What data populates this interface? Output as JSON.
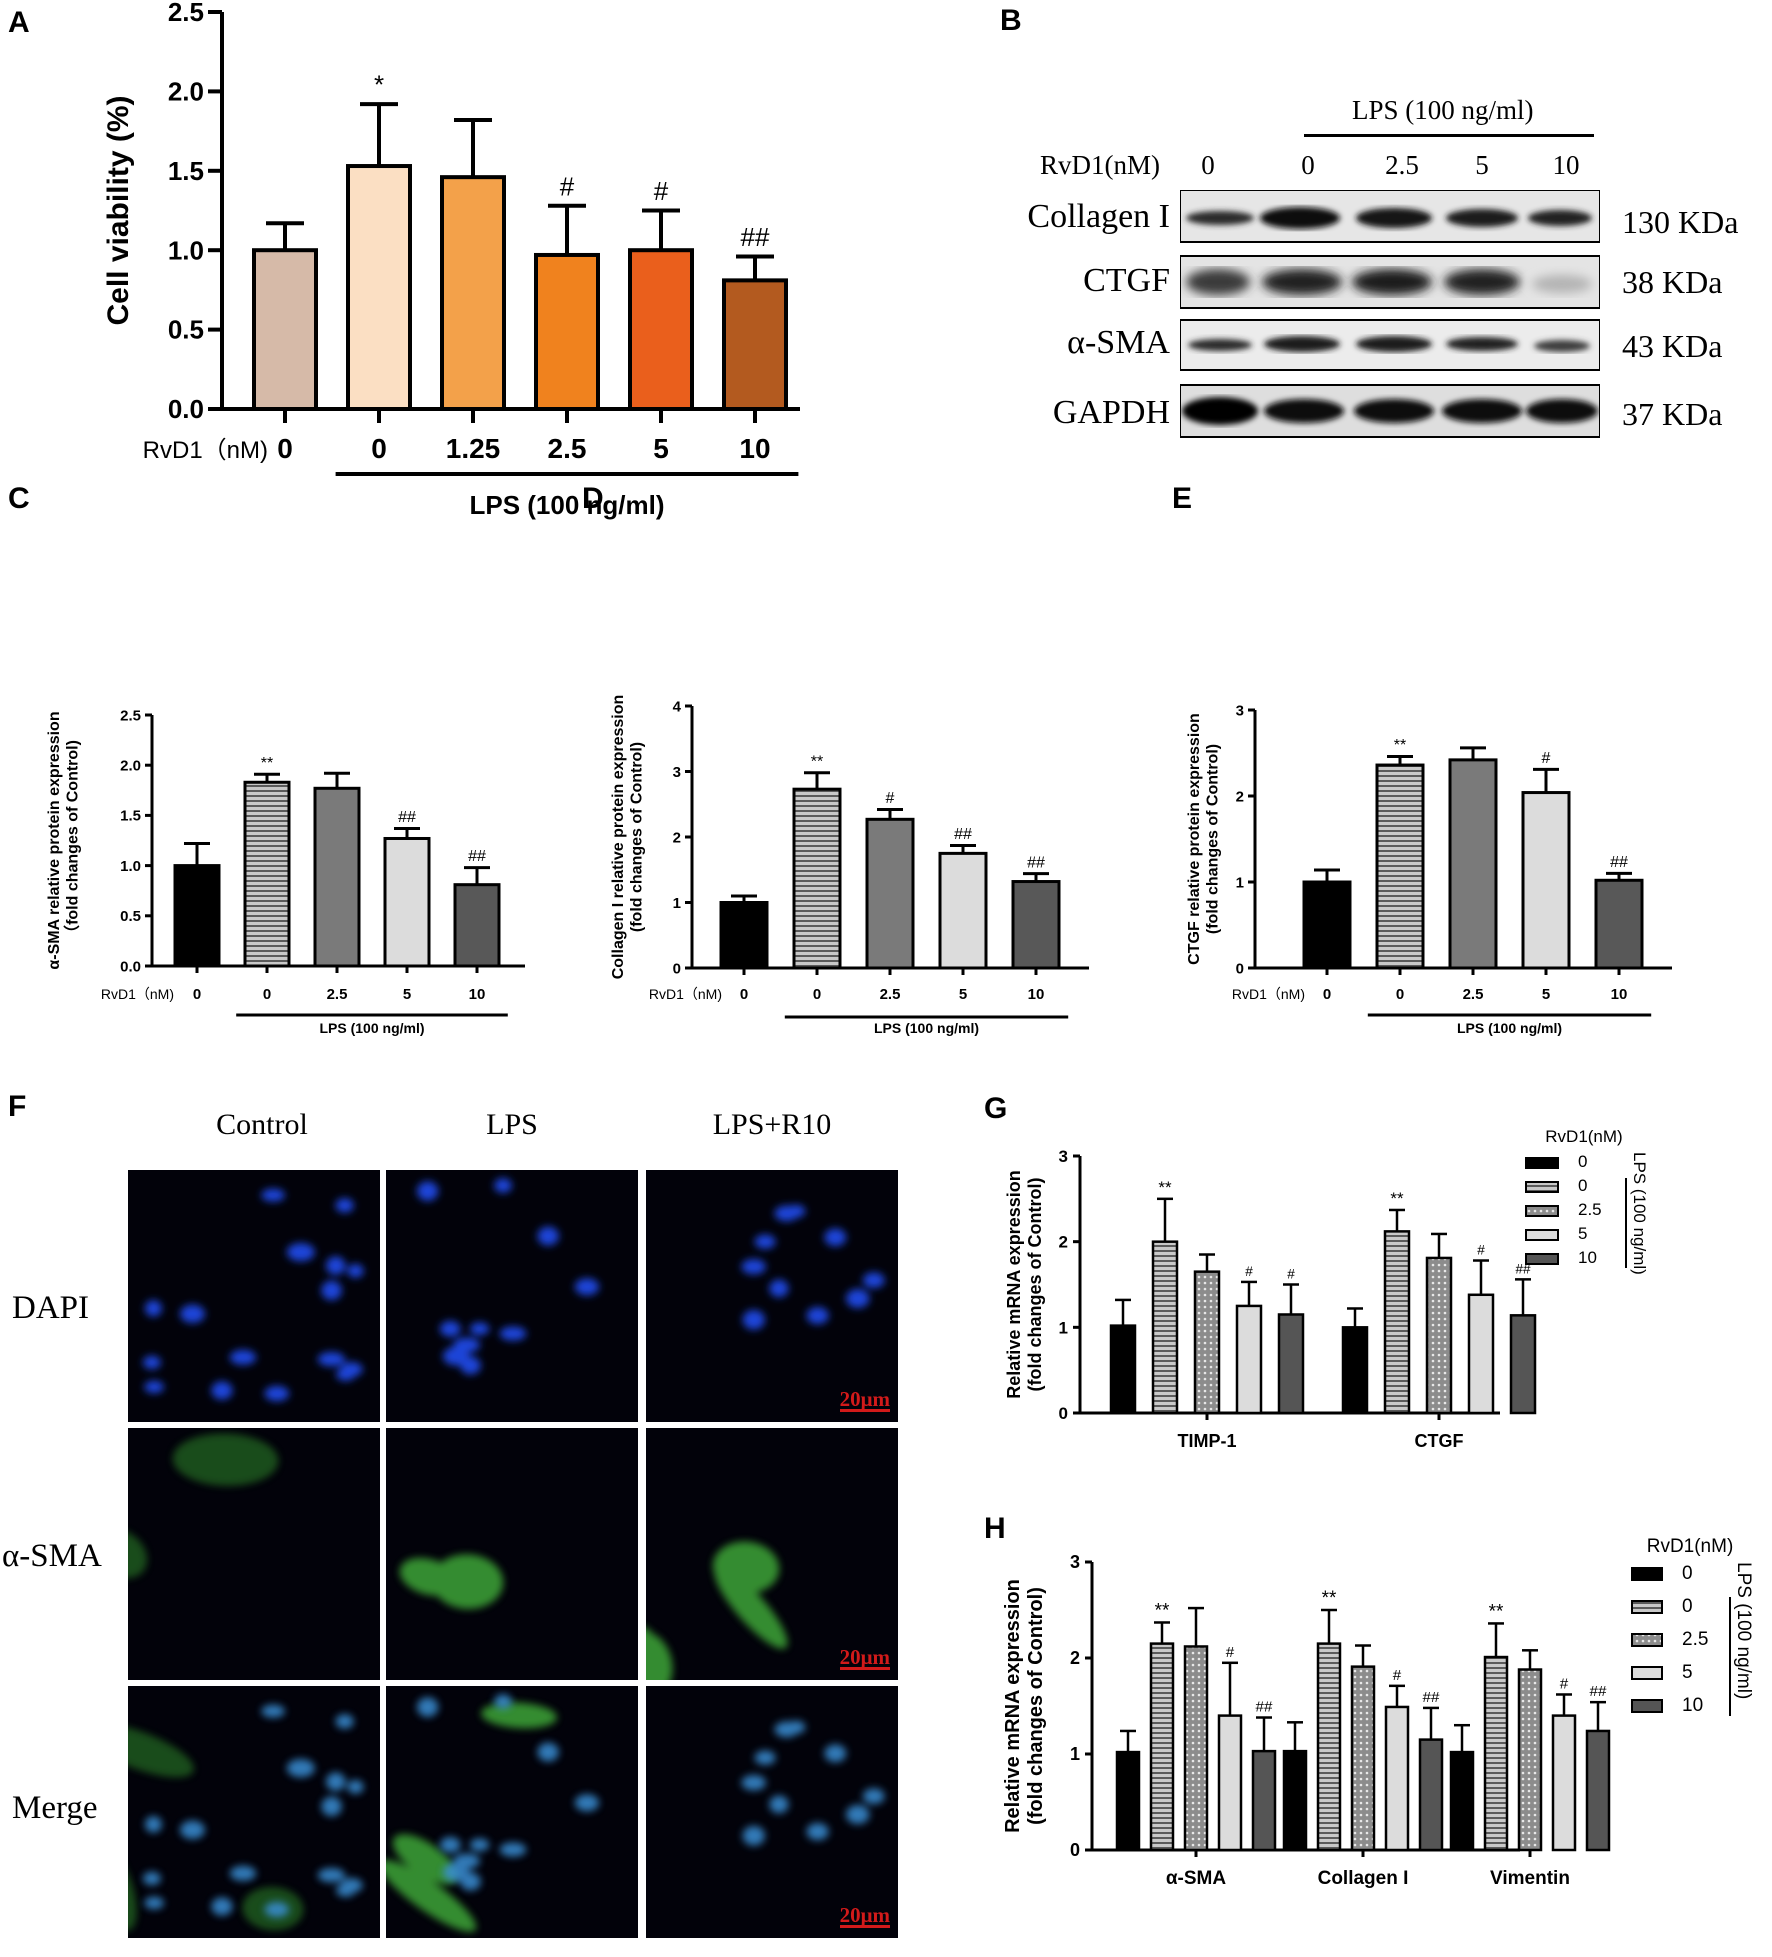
{
  "panel_letters": {
    "A": "A",
    "B": "B",
    "C": "C",
    "D": "D",
    "E": "E",
    "F": "F",
    "G": "G",
    "H": "H"
  },
  "labels": {
    "rvd1_nm": "RvD1（nM)",
    "rvd1_nm_short": "RvD1(nM)",
    "lps": "LPS (100 ng/ml)",
    "blot_lps": "LPS (100 ng/ml)",
    "blot_rvd1": "RvD1(nM)",
    "legend_title": "RvD1(nM)",
    "legend_lps": "LPS (100 ng/ml)"
  },
  "blot": {
    "conditions": [
      "0",
      "0",
      "2.5",
      "5",
      "10"
    ],
    "proteins": [
      {
        "name": "Collagen I",
        "size": "130 KDa"
      },
      {
        "name": "CTGF",
        "size": "38 KDa"
      },
      {
        "name": "α-SMA",
        "size": "43 KDa"
      },
      {
        "name": "GAPDH",
        "size": "37 KDa"
      }
    ]
  },
  "microscopy": {
    "columns": [
      "Control",
      "LPS",
      "LPS+R10"
    ],
    "rows": [
      "DAPI",
      "α-SMA",
      "Merge"
    ],
    "scale_bar": "20μm"
  },
  "colors": {
    "A": [
      "#d6baa8",
      "#fbdfc3",
      "#f3a14a",
      "#f0821e",
      "#ea5f1c",
      "#b35a1f"
    ],
    "CDE": [
      "#000000",
      "#a8a8a8",
      "#7a7a7a",
      "#dcdcdc",
      "#585858"
    ],
    "GH": [
      "#000000",
      "#9b9b9b",
      "#8c8c8c",
      "#dcdcdc",
      "#555555"
    ]
  },
  "chart_data": [
    {
      "id": "A",
      "type": "bar",
      "ylabel": "Cell viability (%)",
      "categories": [
        "0",
        "0",
        "1.25",
        "2.5",
        "5",
        "10"
      ],
      "values": [
        1.0,
        1.53,
        1.46,
        0.97,
        1.0,
        0.81
      ],
      "errors": [
        0.17,
        0.39,
        0.36,
        0.31,
        0.25,
        0.15
      ],
      "annotations": [
        "",
        "*",
        "",
        "#",
        "#",
        "##"
      ],
      "ylim": [
        0,
        2.5
      ],
      "yticks": [
        "0.0",
        "0.5",
        "1.0",
        "1.5",
        "2.0",
        "2.5"
      ],
      "xlabel": "LPS (100 ng/ml)"
    },
    {
      "id": "C",
      "type": "bar",
      "ylabel": "α-SMA relative protein expression\n（fold changes of Control)",
      "categories": [
        "0",
        "0",
        "2.5",
        "5",
        "10"
      ],
      "values": [
        1.0,
        1.83,
        1.77,
        1.27,
        0.81
      ],
      "errors": [
        0.22,
        0.08,
        0.15,
        0.1,
        0.17
      ],
      "annotations": [
        "",
        "**",
        "",
        "##",
        "##"
      ],
      "ylim": [
        0,
        2.5
      ],
      "yticks": [
        "0.0",
        "0.5",
        "1.0",
        "1.5",
        "2.0",
        "2.5"
      ],
      "xlabel": "LPS (100 ng/ml)"
    },
    {
      "id": "D",
      "type": "bar",
      "ylabel": "Collagen I relative protein expression\n(fold changes of Control)",
      "categories": [
        "0",
        "0",
        "2.5",
        "5",
        "10"
      ],
      "values": [
        1.0,
        2.73,
        2.27,
        1.75,
        1.32
      ],
      "errors": [
        0.1,
        0.25,
        0.15,
        0.12,
        0.12
      ],
      "annotations": [
        "",
        "**",
        "#",
        "##",
        "##"
      ],
      "ylim": [
        0,
        4
      ],
      "yticks": [
        "0",
        "1",
        "2",
        "3",
        "4"
      ],
      "xlabel": "LPS (100 ng/ml)"
    },
    {
      "id": "E",
      "type": "bar",
      "ylabel": "CTGF relative protein expression\n(fold changes of Control)",
      "categories": [
        "0",
        "0",
        "2.5",
        "5",
        "10"
      ],
      "values": [
        1.0,
        2.36,
        2.42,
        2.04,
        1.02
      ],
      "errors": [
        0.14,
        0.1,
        0.14,
        0.27,
        0.08
      ],
      "annotations": [
        "",
        "**",
        "",
        "#",
        "##"
      ],
      "ylim": [
        0,
        3
      ],
      "yticks": [
        "0",
        "1",
        "2",
        "3"
      ],
      "xlabel": "LPS (100 ng/ml)"
    },
    {
      "id": "G",
      "type": "bar",
      "ylabel": "Relative mRNA expression\n(fold changes of Control)",
      "groups": [
        "TIMP-1",
        "CTGF"
      ],
      "legend": [
        "0",
        "0",
        "2.5",
        "5",
        "10"
      ],
      "values": [
        [
          1.02,
          2.0,
          1.65,
          1.25,
          1.15
        ],
        [
          1.0,
          2.12,
          1.81,
          1.38,
          1.14
        ]
      ],
      "errors": [
        [
          0.3,
          0.5,
          0.2,
          0.28,
          0.35
        ],
        [
          0.22,
          0.25,
          0.28,
          0.4,
          0.42
        ]
      ],
      "annotations": [
        [
          "",
          "**",
          "",
          "#",
          "#"
        ],
        [
          "",
          "**",
          "",
          "#",
          "##"
        ]
      ],
      "ylim": [
        0,
        3
      ],
      "yticks": [
        "0",
        "1",
        "2",
        "3"
      ]
    },
    {
      "id": "H",
      "type": "bar",
      "ylabel": "Relative mRNA expression\n(fold changes of Control)",
      "groups": [
        "α-SMA",
        "Collagen I",
        "Vimentin"
      ],
      "legend": [
        "0",
        "0",
        "2.5",
        "5",
        "10"
      ],
      "values": [
        [
          1.02,
          2.15,
          2.12,
          1.4,
          1.03
        ],
        [
          1.03,
          2.15,
          1.91,
          1.49,
          1.15
        ],
        [
          1.02,
          2.01,
          1.88,
          1.4,
          1.24
        ]
      ],
      "errors": [
        [
          0.22,
          0.22,
          0.4,
          0.55,
          0.35
        ],
        [
          0.3,
          0.35,
          0.22,
          0.22,
          0.33
        ],
        [
          0.28,
          0.35,
          0.2,
          0.22,
          0.3
        ]
      ],
      "annotations": [
        [
          "",
          "**",
          "",
          "#",
          "##"
        ],
        [
          "",
          "**",
          "",
          "#",
          "##"
        ],
        [
          "",
          "**",
          "",
          "#",
          "##"
        ]
      ],
      "ylim": [
        0,
        3
      ],
      "yticks": [
        "0",
        "1",
        "2",
        "3"
      ]
    }
  ]
}
